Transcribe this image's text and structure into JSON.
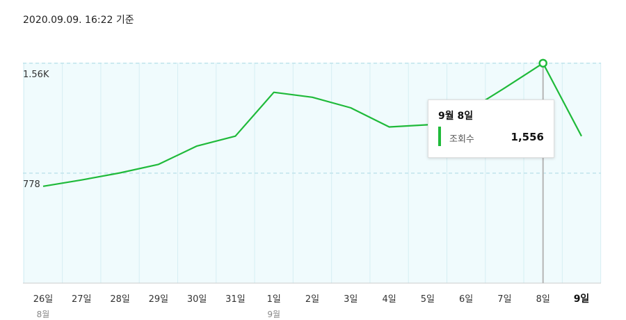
{
  "header": {
    "timestamp": "2020.09.09. 16:22 기준"
  },
  "colors": {
    "line": "#1fba3a",
    "plot_bg": "#f0fbfd",
    "grid": "#d6eef3",
    "dashed": "#bfe3ec",
    "cursor": "#b5b5b5"
  },
  "chart_data": {
    "type": "line",
    "categories": [
      "26일",
      "27일",
      "28일",
      "29일",
      "30일",
      "31일",
      "1일",
      "2일",
      "3일",
      "4일",
      "5일",
      "6일",
      "7일",
      "8일",
      "9일"
    ],
    "month_labels": [
      {
        "index": 0,
        "label": "8월"
      },
      {
        "index": 6,
        "label": "9월"
      }
    ],
    "bold_category_index": 14,
    "series": [
      {
        "name": "조회수",
        "values": [
          685,
          730,
          780,
          840,
          970,
          1040,
          1350,
          1315,
          1240,
          1105,
          1120,
          1210,
          1380,
          1556,
          1040
        ]
      }
    ],
    "y_ticks": [
      {
        "value": 778,
        "label": "778"
      },
      {
        "value": 1556,
        "label": "1.56K"
      }
    ],
    "ylim": [
      0,
      1560
    ],
    "tooltip": {
      "title": "9월 8일",
      "series": "조회수",
      "value": "1,556",
      "index": 13
    }
  }
}
